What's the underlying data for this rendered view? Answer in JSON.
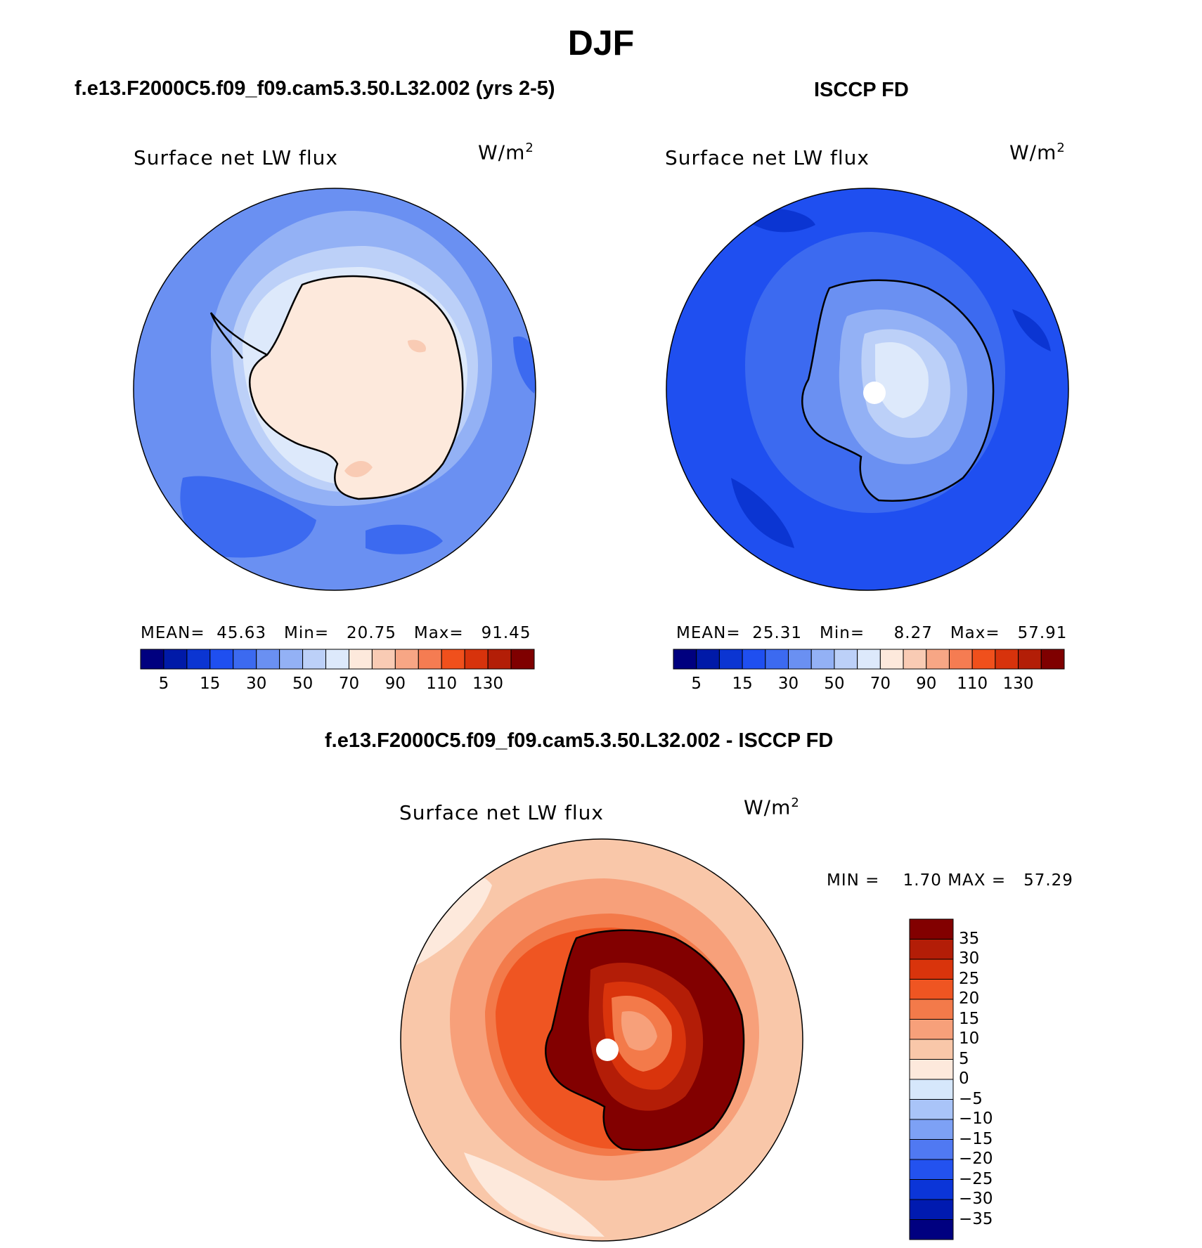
{
  "figure": {
    "title": "DJF"
  },
  "panels": {
    "model": {
      "header": "f.e13.F2000C5.f09_f09.cam5.3.50.L32.002 (yrs 2-5)",
      "variable": "Surface net LW flux",
      "units_base": "W/m",
      "units_exp": "2",
      "stats": {
        "mean_label": "MEAN=",
        "mean": "45.63",
        "min_label": "Min=",
        "min": "20.75",
        "max_label": "Max=",
        "max": "91.45"
      }
    },
    "obs": {
      "header": "ISCCP FD",
      "variable": "Surface net LW flux",
      "units_base": "W/m",
      "units_exp": "2",
      "stats": {
        "mean_label": "MEAN=",
        "mean": "25.31",
        "min_label": "Min=",
        "min": "8.27",
        "max_label": "Max=",
        "max": "57.91"
      }
    },
    "diff": {
      "header": "f.e13.F2000C5.f09_f09.cam5.3.50.L32.002 - ISCCP FD",
      "variable": "Surface net LW flux",
      "units_base": "W/m",
      "units_exp": "2",
      "stats": {
        "min_label": "MIN =",
        "min": "1.70",
        "max_label": "MAX =",
        "max": "57.29"
      }
    }
  },
  "colorbars": {
    "abs": {
      "colors": [
        "#00007f",
        "#001aa8",
        "#0b35d2",
        "#1f4ff0",
        "#3c6af0",
        "#6a90f2",
        "#93b1f5",
        "#bcd0f8",
        "#dde9fb",
        "#fde9dc",
        "#f9cbb4",
        "#f7a685",
        "#f57c52",
        "#f0501c",
        "#d7330c",
        "#b31e07",
        "#7f0000"
      ],
      "tick_labels": [
        "5",
        "15",
        "30",
        "50",
        "70",
        "90",
        "110",
        "130"
      ]
    },
    "diff": {
      "colors": [
        "#000080",
        "#001ab0",
        "#0b35d8",
        "#2352ef",
        "#5079f2",
        "#7da1f5",
        "#a9c4f8",
        "#d6e7fb",
        "#fde9dc",
        "#f9c7a9",
        "#f7a07a",
        "#f37a4a",
        "#ef5522",
        "#d9340c",
        "#b31d07",
        "#820000"
      ],
      "tick_labels": [
        "35",
        "30",
        "25",
        "20",
        "15",
        "10",
        "5",
        "0",
        "−5",
        "−10",
        "−15",
        "−20",
        "−25",
        "−30",
        "−35"
      ]
    }
  },
  "map_colors": {
    "model": {
      "ocean_far": "#6a90f2",
      "ocean_mid": "#93b1f5",
      "ocean_near": "#bcd0f8",
      "coast": "#dde9fb",
      "land": "#fde9dc",
      "land_warm": "#f9cbb4",
      "patch_dark": "#3c6af0"
    },
    "obs": {
      "ocean_far": "#1f4ff0",
      "ocean_mid": "#3c6af0",
      "patch_dark": "#0b35d2",
      "land_outer": "#6a90f2",
      "land_mid": "#93b1f5",
      "land_inner": "#bcd0f8",
      "land_core": "#dde9fb"
    },
    "diff": {
      "ocean_light": "#fde9dc",
      "ocean_far": "#f9c7a9",
      "ocean_mid": "#f7a07a",
      "ring": "#f37a4a",
      "ring2": "#ef5522",
      "land_dark": "#820000",
      "land_mid": "#b31d07",
      "land_inner": "#d9340c",
      "land_core": "#f37a4a",
      "land_light": "#f7a07a",
      "coastline": "#000000"
    }
  }
}
